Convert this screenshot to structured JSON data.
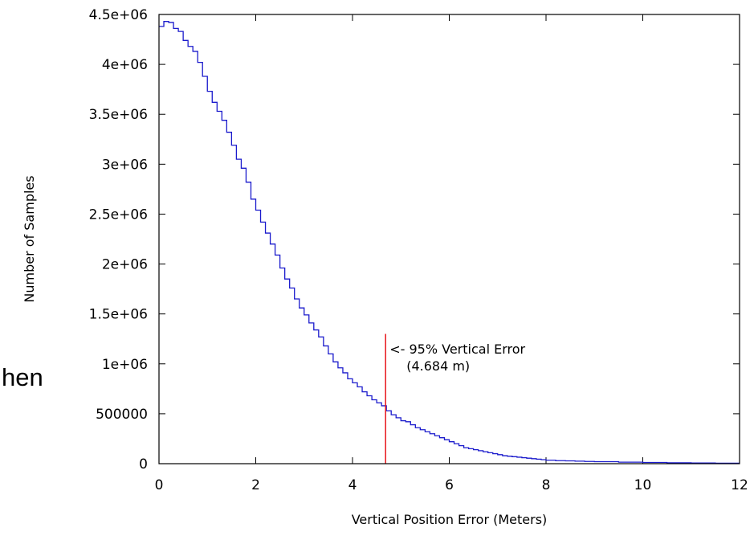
{
  "background_text": "hen",
  "chart_data": {
    "type": "line",
    "title": "",
    "xlabel": "Vertical Position Error (Meters)",
    "ylabel": "Number of Samples",
    "xlim": [
      0,
      12
    ],
    "ylim": [
      0,
      4500000
    ],
    "x_ticks": [
      0,
      2,
      4,
      6,
      8,
      10,
      12
    ],
    "x_tick_labels": [
      "0",
      "2",
      "4",
      "6",
      "8",
      "10",
      "12"
    ],
    "y_ticks": [
      0,
      500000,
      1000000,
      1500000,
      2000000,
      2500000,
      3000000,
      3500000,
      4000000,
      4500000
    ],
    "y_tick_labels": [
      "0",
      "500000",
      "1e+06",
      "1.5e+06",
      "2e+06",
      "2.5e+06",
      "3e+06",
      "3.5e+06",
      "4e+06",
      "4.5e+06"
    ],
    "grid": false,
    "series": [
      {
        "style": "steps",
        "color": "#1a1acc",
        "x": [
          0.0,
          0.1,
          0.2,
          0.3,
          0.4,
          0.5,
          0.6,
          0.7,
          0.8,
          0.9,
          1.0,
          1.1,
          1.2,
          1.3,
          1.4,
          1.5,
          1.6,
          1.7,
          1.8,
          1.9,
          2.0,
          2.1,
          2.2,
          2.3,
          2.4,
          2.5,
          2.6,
          2.7,
          2.8,
          2.9,
          3.0,
          3.1,
          3.2,
          3.3,
          3.4,
          3.5,
          3.6,
          3.7,
          3.8,
          3.9,
          4.0,
          4.1,
          4.2,
          4.3,
          4.4,
          4.5,
          4.6,
          4.7,
          4.8,
          4.9,
          5.0,
          5.1,
          5.2,
          5.3,
          5.4,
          5.5,
          5.6,
          5.7,
          5.8,
          5.9,
          6.0,
          6.1,
          6.2,
          6.3,
          6.4,
          6.5,
          6.6,
          6.7,
          6.8,
          6.9,
          7.0,
          7.1,
          7.2,
          7.3,
          7.4,
          7.5,
          7.6,
          7.7,
          7.8,
          7.9,
          8.0,
          8.2,
          8.4,
          8.6,
          8.8,
          9.0,
          9.5,
          10.0,
          10.5,
          11.0,
          11.5
        ],
        "y": [
          4380000,
          4430000,
          4420000,
          4360000,
          4330000,
          4240000,
          4180000,
          4130000,
          4020000,
          3880000,
          3730000,
          3620000,
          3530000,
          3440000,
          3320000,
          3190000,
          3050000,
          2960000,
          2820000,
          2650000,
          2540000,
          2420000,
          2310000,
          2200000,
          2090000,
          1960000,
          1850000,
          1760000,
          1650000,
          1560000,
          1490000,
          1410000,
          1340000,
          1270000,
          1180000,
          1100000,
          1020000,
          960000,
          910000,
          850000,
          810000,
          770000,
          720000,
          680000,
          640000,
          610000,
          580000,
          530000,
          490000,
          460000,
          430000,
          420000,
          390000,
          360000,
          340000,
          320000,
          300000,
          280000,
          260000,
          240000,
          220000,
          200000,
          180000,
          160000,
          150000,
          140000,
          130000,
          120000,
          110000,
          100000,
          90000,
          80000,
          75000,
          70000,
          65000,
          60000,
          55000,
          50000,
          45000,
          40000,
          35000,
          30000,
          28000,
          25000,
          22000,
          20000,
          15000,
          12000,
          9000,
          7000,
          5000
        ]
      }
    ],
    "annotation": {
      "x": 4.684,
      "y_top": 1300000,
      "color": "#e8161b",
      "line1": "<- 95% Vertical Error",
      "line2": "(4.684 m)"
    }
  }
}
